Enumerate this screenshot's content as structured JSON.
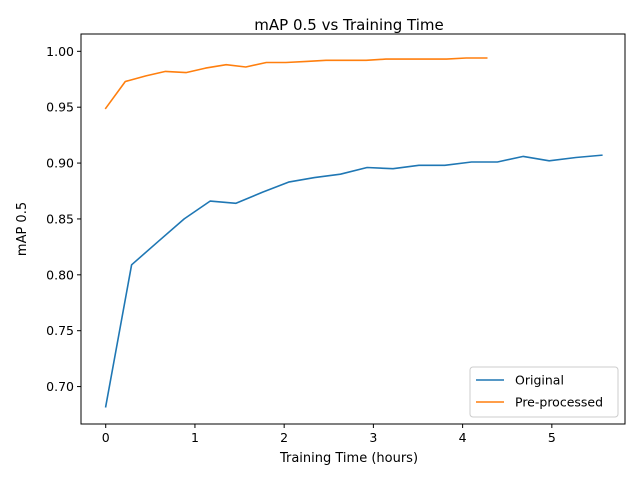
{
  "chart_data": {
    "type": "line",
    "title": "mAP 0.5 vs Training Time",
    "xlabel": "Training Time (hours)",
    "ylabel": "mAP 0.5",
    "xlim": [
      -0.277,
      5.82
    ],
    "ylim": [
      0.6665,
      1.0155
    ],
    "xticks": [
      0,
      1,
      2,
      3,
      4,
      5
    ],
    "yticks": [
      0.7,
      0.75,
      0.8,
      0.85,
      0.9,
      0.95,
      1.0
    ],
    "grid": false,
    "legend_position": "lower-right",
    "series": [
      {
        "name": "Original",
        "color": "#1f77b4",
        "x": [
          0.0,
          0.29,
          0.59,
          0.88,
          1.17,
          1.46,
          1.76,
          2.05,
          2.34,
          2.63,
          2.93,
          3.22,
          3.51,
          3.8,
          4.1,
          4.39,
          4.68,
          4.97,
          5.27,
          5.56
        ],
        "y": [
          0.682,
          0.809,
          0.83,
          0.85,
          0.866,
          0.864,
          0.874,
          0.883,
          0.887,
          0.89,
          0.896,
          0.895,
          0.898,
          0.898,
          0.901,
          0.901,
          0.906,
          0.902,
          0.905,
          0.907
        ]
      },
      {
        "name": "Pre-processed",
        "color": "#ff7f0e",
        "x": [
          0.0,
          0.22,
          0.45,
          0.67,
          0.9,
          1.12,
          1.35,
          1.57,
          1.8,
          2.02,
          2.25,
          2.47,
          2.7,
          2.92,
          3.14,
          3.37,
          3.59,
          3.82,
          4.04,
          4.27
        ],
        "y": [
          0.949,
          0.973,
          0.978,
          0.982,
          0.981,
          0.985,
          0.988,
          0.986,
          0.99,
          0.99,
          0.991,
          0.992,
          0.992,
          0.992,
          0.993,
          0.993,
          0.993,
          0.993,
          0.994,
          0.994
        ]
      }
    ]
  }
}
